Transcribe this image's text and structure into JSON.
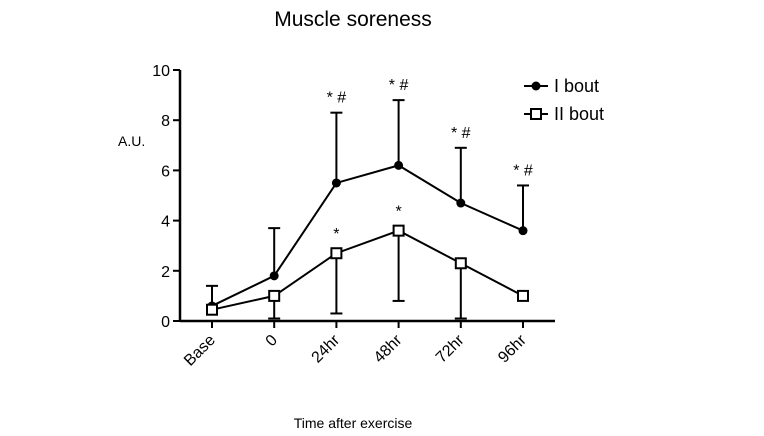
{
  "chart_data": {
    "type": "line",
    "title": "Muscle soreness",
    "xlabel": "Time after exercise",
    "ylabel": "A.U.",
    "categories": [
      "Base",
      "0",
      "24hr",
      "48hr",
      "72hr",
      "96hr"
    ],
    "ylim": [
      0,
      10
    ],
    "yticks": [
      0,
      2,
      4,
      6,
      8,
      10
    ],
    "legend_position": "top-right",
    "grid": false,
    "series": [
      {
        "name": "I bout",
        "marker": "filled-circle",
        "values": [
          0.6,
          1.8,
          5.5,
          6.2,
          4.7,
          3.6
        ],
        "error_upper": [
          1.4,
          3.7,
          8.3,
          8.8,
          6.9,
          5.4
        ],
        "annotations": [
          "",
          "",
          "* #",
          "* #",
          "* #",
          "* #"
        ]
      },
      {
        "name": "II bout",
        "marker": "open-square",
        "values": [
          0.45,
          1.0,
          2.7,
          3.6,
          2.3,
          1.0
        ],
        "error_lower": [
          0.3,
          0.1,
          0.3,
          0.8,
          0.1,
          1.0
        ],
        "annotations": [
          "",
          "",
          "*",
          "*",
          "",
          ""
        ]
      }
    ]
  }
}
